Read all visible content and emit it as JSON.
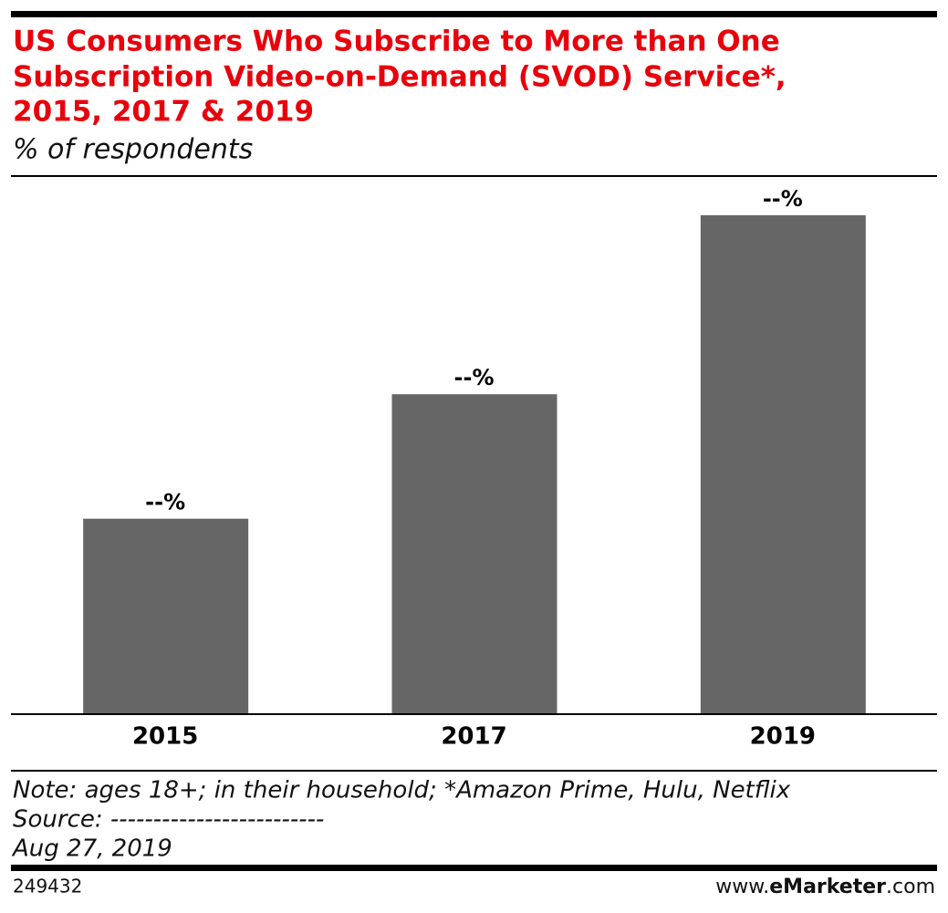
{
  "chart_data": {
    "type": "bar",
    "title_lines": [
      "US Consumers Who Subscribe to More than One",
      "Subscription Video-on-Demand (SVOD) Service*,",
      "2015, 2017 & 2019"
    ],
    "subtitle": "% of respondents",
    "categories": [
      "2015",
      "2017",
      "2019"
    ],
    "values": [
      25,
      41,
      64
    ],
    "value_labels": [
      "--%",
      "--%",
      "--%"
    ],
    "color": "#666666",
    "notes": [
      "Note: ages 18+; in their household; *Amazon Prime, Hulu, Netflix",
      "Source: -------------------------",
      "Aug 27, 2019"
    ],
    "chart_id": "249432",
    "brand": [
      "www.",
      "eMarketer",
      ".com"
    ]
  }
}
